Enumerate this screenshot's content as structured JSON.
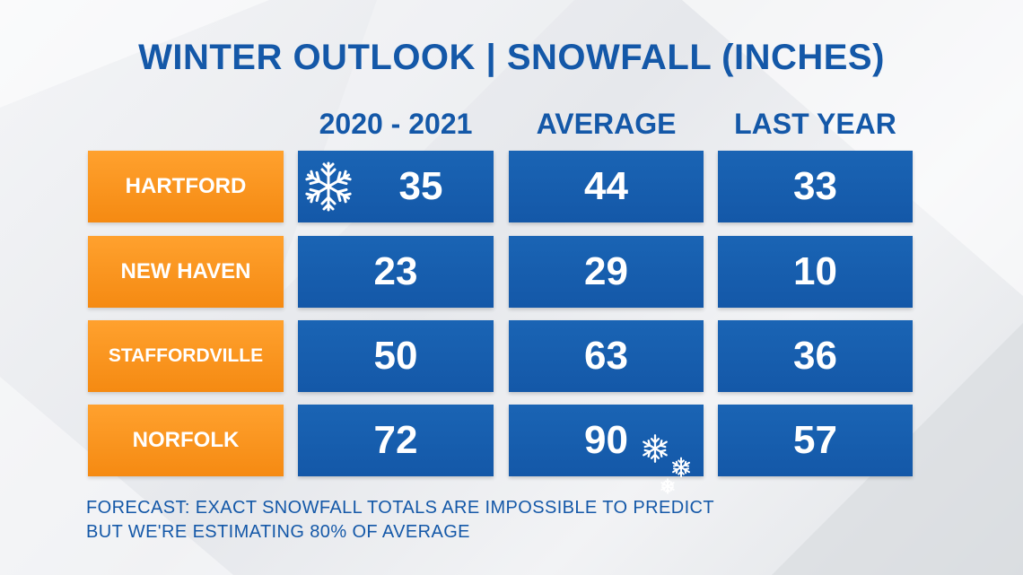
{
  "title": "WINTER OUTLOOK | SNOWFALL (INCHES)",
  "columns": [
    "2020 - 2021",
    "AVERAGE",
    "LAST YEAR"
  ],
  "rows": [
    {
      "city": "HARTFORD",
      "values": [
        "35",
        "44",
        "33"
      ]
    },
    {
      "city": "NEW HAVEN",
      "values": [
        "23",
        "29",
        "10"
      ]
    },
    {
      "city": "STAFFORDVILLE",
      "values": [
        "50",
        "63",
        "36"
      ]
    },
    {
      "city": "NORFOLK",
      "values": [
        "72",
        "90",
        "57"
      ]
    }
  ],
  "footnote": {
    "line1": "FORECAST: EXACT SNOWFALL TOTALS ARE IMPOSSIBLE TO PREDICT",
    "line2": "BUT WE'RE ESTIMATING 80% OF AVERAGE"
  },
  "icons": {
    "snowflake": "snowflake-icon"
  },
  "colors": {
    "title": "#1458a8",
    "city_bg": "#f58a12",
    "cell_bg": "#1458a8",
    "text_on_cell": "#ffffff"
  }
}
